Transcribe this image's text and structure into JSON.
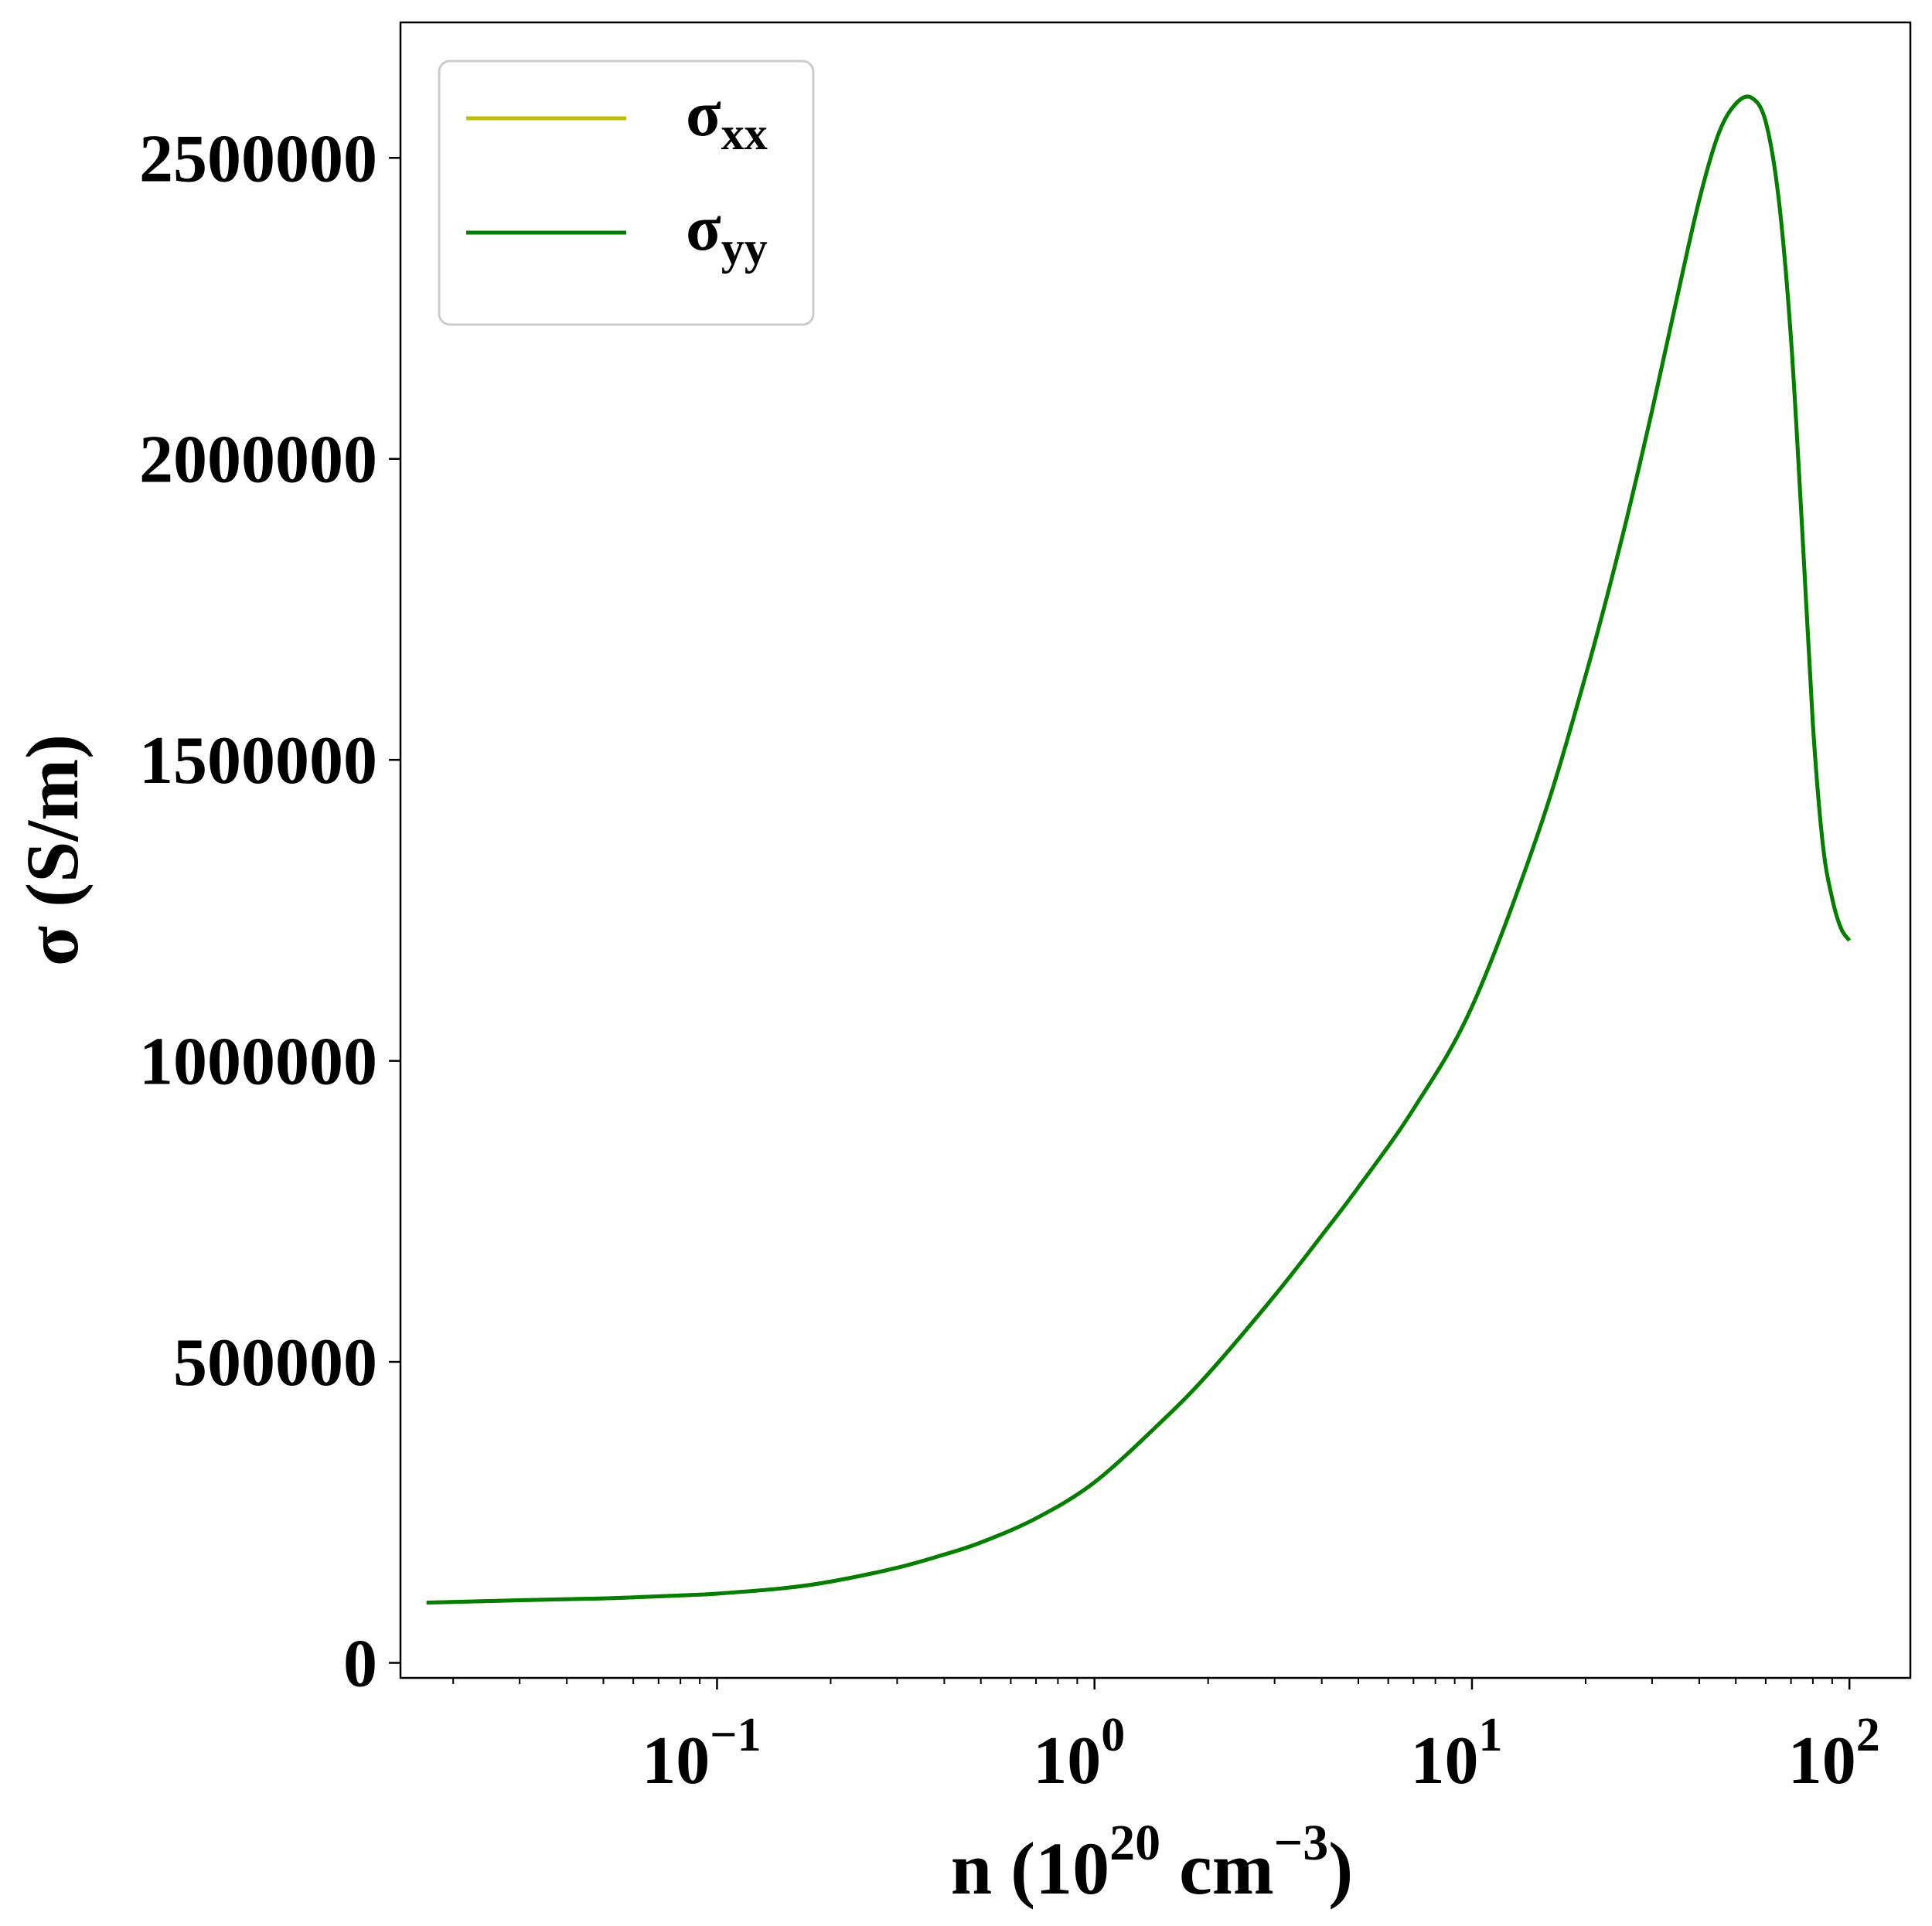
{
  "chart_data": {
    "type": "line",
    "xscale": "log",
    "xlim": [
      0.0145,
      145
    ],
    "ylim": [
      -25000,
      2725000
    ],
    "x_ticks": [
      {
        "value": 0.1,
        "base": "10",
        "exp": "−1"
      },
      {
        "value": 1,
        "base": "10",
        "exp": "0"
      },
      {
        "value": 10,
        "base": "10",
        "exp": "1"
      },
      {
        "value": 100,
        "base": "10",
        "exp": "2"
      }
    ],
    "y_ticks": [
      {
        "value": 0,
        "label": "0"
      },
      {
        "value": 500000,
        "label": "500000"
      },
      {
        "value": 1000000,
        "label": "1000000"
      },
      {
        "value": 1500000,
        "label": "1500000"
      },
      {
        "value": 2000000,
        "label": "2000000"
      },
      {
        "value": 2500000,
        "label": "2500000"
      }
    ],
    "xlabel": {
      "prefix": "n (10",
      "sup1": "20",
      "mid": " cm",
      "sup2": "−3",
      "suffix": ")"
    },
    "ylabel": "σ (S/m)",
    "grid": false,
    "legend_position": "upper left",
    "series": [
      {
        "name": "σxx",
        "name_base": "σ",
        "name_sub": "xx",
        "color": "#bfbf00",
        "x": [
          0.017,
          0.03,
          0.05,
          0.08,
          0.1,
          0.15,
          0.2,
          0.3,
          0.4,
          0.5,
          0.7,
          1.0,
          1.5,
          2.0,
          3.0,
          4.0,
          5.0,
          7.0,
          10,
          15,
          20,
          25,
          30,
          35,
          40,
          45,
          50,
          55,
          60,
          65,
          70,
          75,
          80,
          85,
          90,
          95,
          100
        ],
        "y": [
          100000,
          104000,
          107000,
          112000,
          115000,
          124000,
          135000,
          158000,
          180000,
          200000,
          240000,
          300000,
          400000,
          480000,
          610000,
          710000,
          790000,
          920000,
          1090000,
          1380000,
          1640000,
          1870000,
          2080000,
          2270000,
          2430000,
          2540000,
          2590000,
          2600000,
          2560000,
          2430000,
          2200000,
          1880000,
          1560000,
          1360000,
          1270000,
          1220000,
          1200000
        ]
      },
      {
        "name": "σyy",
        "name_base": "σ",
        "name_sub": "yy",
        "color": "#008000",
        "x": [
          0.017,
          0.03,
          0.05,
          0.08,
          0.1,
          0.15,
          0.2,
          0.3,
          0.4,
          0.5,
          0.7,
          1.0,
          1.5,
          2.0,
          3.0,
          4.0,
          5.0,
          7.0,
          10,
          15,
          20,
          25,
          30,
          35,
          40,
          45,
          50,
          55,
          60,
          65,
          70,
          75,
          80,
          85,
          90,
          95,
          100
        ],
        "y": [
          100000,
          104000,
          107000,
          112000,
          115000,
          124000,
          135000,
          158000,
          180000,
          200000,
          240000,
          300000,
          400000,
          480000,
          610000,
          710000,
          790000,
          920000,
          1090000,
          1380000,
          1640000,
          1870000,
          2080000,
          2270000,
          2430000,
          2540000,
          2590000,
          2600000,
          2560000,
          2430000,
          2200000,
          1880000,
          1560000,
          1360000,
          1270000,
          1220000,
          1200000
        ]
      }
    ]
  }
}
